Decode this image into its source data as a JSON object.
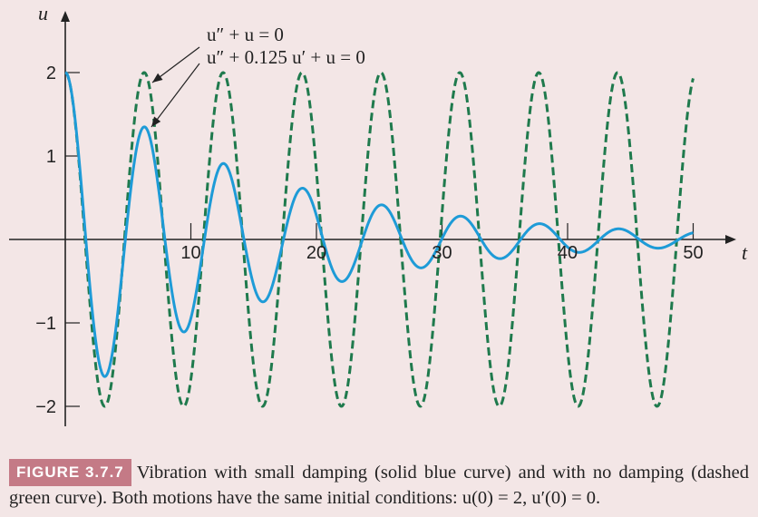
{
  "chart_data": {
    "type": "line",
    "xlabel": "t",
    "ylabel": "u",
    "xlim": [
      0,
      51
    ],
    "ylim": [
      -2.2,
      2.4
    ],
    "x_ticks": [
      10,
      20,
      30,
      40,
      50
    ],
    "y_ticks": [
      2,
      1,
      -1,
      -2
    ],
    "x_tick_labels": [
      "10",
      "20",
      "30",
      "40",
      "50"
    ],
    "y_tick_labels": [
      "2",
      "1",
      "−1",
      "−2"
    ],
    "series": [
      {
        "name": "u″ + u = 0",
        "style": "dashed",
        "color": "#1f7a4d",
        "x_range": [
          0,
          50
        ],
        "description_values": {
          "amplitude": 2,
          "omega": 1,
          "damping": 0
        }
      },
      {
        "name": "u″ + 0.125 u′ + u = 0",
        "style": "solid",
        "color": "#1e9bd7",
        "x_range": [
          0,
          50
        ],
        "description_values": {
          "amplitude": 2,
          "damping_coefficient": 0.125
        }
      }
    ],
    "annotations": [
      {
        "text": "u″ + u = 0",
        "points_to": "dashed"
      },
      {
        "text": "u″ + 0.125 u′ + u = 0",
        "points_to": "solid"
      }
    ]
  },
  "caption": {
    "figure_label": "FIGURE 3.7.7",
    "text": "Vibration with small damping (solid blue curve) and with no damping (dashed green curve). Both motions have the same initial conditions: u(0) = 2, u′(0) = 0."
  },
  "colors": {
    "background": "#f3e6e6",
    "dashed": "#1f7a4d",
    "solid": "#1e9bd7",
    "badge": "#c47a86"
  }
}
